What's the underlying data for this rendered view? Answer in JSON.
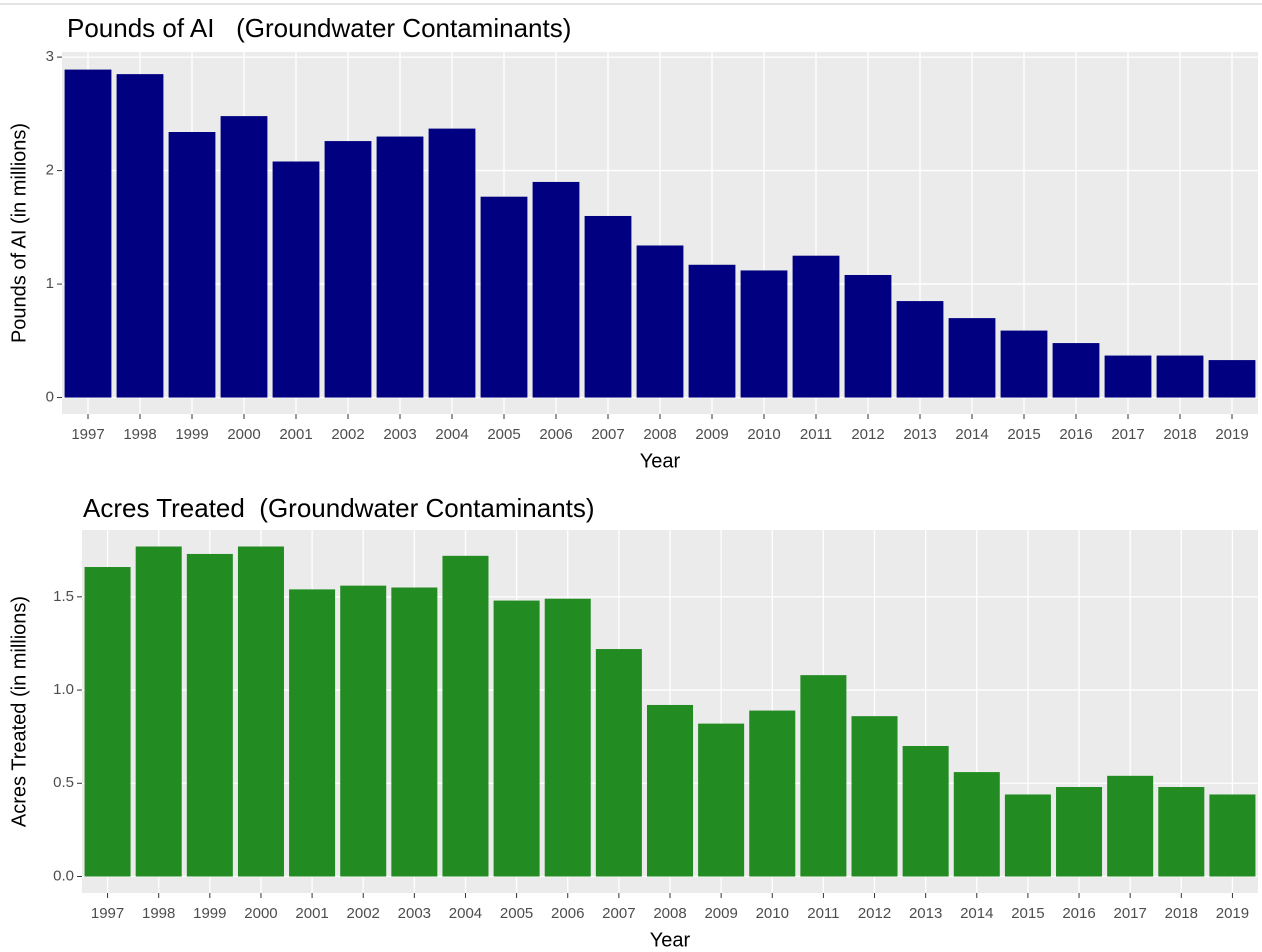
{
  "chart_data": [
    {
      "type": "bar",
      "title": "Pounds of AI   (Groundwater Contaminants)",
      "x_label": "Year",
      "y_label": "Pounds of AI (in millions)",
      "categories": [
        "1997",
        "1998",
        "1999",
        "2000",
        "2001",
        "2002",
        "2003",
        "2004",
        "2005",
        "2006",
        "2007",
        "2008",
        "2009",
        "2010",
        "2011",
        "2012",
        "2013",
        "2014",
        "2015",
        "2016",
        "2017",
        "2018",
        "2019"
      ],
      "values": [
        2.89,
        2.85,
        2.34,
        2.48,
        2.08,
        2.26,
        2.3,
        2.37,
        1.77,
        1.9,
        1.6,
        1.34,
        1.17,
        1.12,
        1.25,
        1.08,
        0.85,
        0.7,
        0.59,
        0.48,
        0.37,
        0.37,
        0.33
      ],
      "color": "#000080",
      "ylim": [
        -0.145,
        3.045
      ],
      "yticks": [
        0,
        1,
        2,
        3
      ],
      "grid": true
    },
    {
      "type": "bar",
      "title": "Acres Treated  (Groundwater Contaminants)",
      "x_label": "Year",
      "y_label": "Acres Treated (in millions)",
      "categories": [
        "1997",
        "1998",
        "1999",
        "2000",
        "2001",
        "2002",
        "2003",
        "2004",
        "2005",
        "2006",
        "2007",
        "2008",
        "2009",
        "2010",
        "2011",
        "2012",
        "2013",
        "2014",
        "2015",
        "2016",
        "2017",
        "2018",
        "2019"
      ],
      "values": [
        1.66,
        1.77,
        1.73,
        1.77,
        1.54,
        1.56,
        1.55,
        1.72,
        1.48,
        1.49,
        1.22,
        0.92,
        0.82,
        0.89,
        1.08,
        0.86,
        0.7,
        0.56,
        0.44,
        0.48,
        0.54,
        0.48,
        0.44
      ],
      "color": "#228B22",
      "ylim": [
        -0.0885,
        1.8585
      ],
      "yticks": [
        {
          "value": 0,
          "label": "0.0"
        },
        0.5,
        {
          "value": 1,
          "label": "1.0"
        },
        1.5
      ],
      "grid": true
    }
  ]
}
